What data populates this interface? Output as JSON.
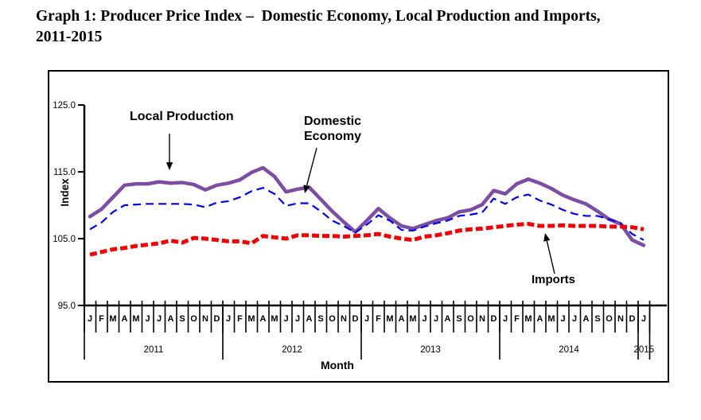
{
  "header": {
    "title_line1": "Graph 1: Producer Price Index –  Domestic Economy, Local Production and Imports,",
    "title_line2": "2011-2015"
  },
  "chart_data": {
    "type": "line",
    "title": "Graph 1: Producer Price Index – Domestic Economy, Local Production and Imports, 2011-2015",
    "xlabel": "Month",
    "ylabel": "Index",
    "ylim": [
      95.0,
      125.0
    ],
    "yticks": [
      95.0,
      105.0,
      115.0,
      125.0
    ],
    "ytick_labels": [
      "95.0",
      "105.0",
      "115.0",
      "125.0"
    ],
    "grid": false,
    "legend_position": "inline-annotations-with-arrows",
    "x_months": [
      "J",
      "F",
      "M",
      "A",
      "M",
      "J",
      "J",
      "A",
      "S",
      "O",
      "N",
      "D",
      "J",
      "F",
      "M",
      "A",
      "M",
      "J",
      "J",
      "A",
      "S",
      "O",
      "N",
      "D",
      "J",
      "F",
      "M",
      "A",
      "M",
      "J",
      "J",
      "A",
      "S",
      "O",
      "N",
      "D",
      "J",
      "F",
      "M",
      "A",
      "M",
      "J",
      "J",
      "A",
      "S",
      "O",
      "N",
      "D",
      "J"
    ],
    "years": [
      {
        "label": "2011",
        "start": 0,
        "count": 12
      },
      {
        "label": "2012",
        "start": 12,
        "count": 12
      },
      {
        "label": "2013",
        "start": 24,
        "count": 12
      },
      {
        "label": "2014",
        "start": 36,
        "count": 12
      },
      {
        "label": "2015",
        "start": 48,
        "count": 1
      }
    ],
    "series": [
      {
        "name": "Local Production",
        "color": "#7B4EA3",
        "line_style": "solid",
        "line_width": 4.5,
        "values": [
          108.3,
          109.4,
          111.2,
          113.0,
          113.2,
          113.2,
          113.5,
          113.3,
          113.4,
          113.1,
          112.3,
          113.0,
          113.3,
          113.8,
          114.9,
          115.6,
          114.3,
          112.0,
          112.4,
          112.7,
          110.9,
          109.1,
          107.5,
          106.0,
          107.7,
          109.5,
          108.1,
          106.9,
          106.5,
          107.1,
          107.7,
          108.1,
          109.0,
          109.3,
          110.1,
          112.2,
          111.7,
          113.2,
          113.9,
          113.3,
          112.5,
          111.5,
          110.8,
          110.2,
          109.1,
          107.9,
          107.2,
          104.8,
          104.0
        ]
      },
      {
        "name": "Domestic Economy",
        "color": "#0000EE",
        "line_style": "dashed",
        "line_width": 2.2,
        "values": [
          106.4,
          107.4,
          109.0,
          110.0,
          110.1,
          110.2,
          110.2,
          110.2,
          110.2,
          110.1,
          109.7,
          110.4,
          110.6,
          111.2,
          112.1,
          112.6,
          111.7,
          109.9,
          110.3,
          110.3,
          109.1,
          107.7,
          106.9,
          105.9,
          107.1,
          108.5,
          107.7,
          106.3,
          106.2,
          106.8,
          107.3,
          107.7,
          108.4,
          108.6,
          108.9,
          111.0,
          110.2,
          111.2,
          111.6,
          110.7,
          110.1,
          109.3,
          108.7,
          108.4,
          108.4,
          107.9,
          107.3,
          105.7,
          104.8
        ]
      },
      {
        "name": "Imports",
        "color": "#F00000",
        "line_style": "thick-dashed",
        "line_width": 5,
        "values": [
          102.6,
          103.0,
          103.4,
          103.6,
          103.9,
          104.1,
          104.3,
          104.7,
          104.4,
          105.1,
          105.0,
          104.8,
          104.6,
          104.6,
          104.3,
          105.4,
          105.2,
          105.0,
          105.5,
          105.5,
          105.4,
          105.4,
          105.3,
          105.4,
          105.5,
          105.7,
          105.3,
          105.0,
          104.8,
          105.3,
          105.5,
          105.8,
          106.2,
          106.4,
          106.5,
          106.7,
          106.9,
          107.1,
          107.2,
          106.9,
          106.9,
          107.0,
          106.9,
          106.9,
          106.9,
          106.8,
          106.8,
          106.7,
          106.4
        ]
      }
    ],
    "annotations": [
      {
        "text": "Local Production",
        "series": "Local Production"
      },
      {
        "text": "Domestic\nEconomy",
        "series": "Domestic Economy"
      },
      {
        "text": "Imports",
        "series": "Imports"
      }
    ]
  }
}
